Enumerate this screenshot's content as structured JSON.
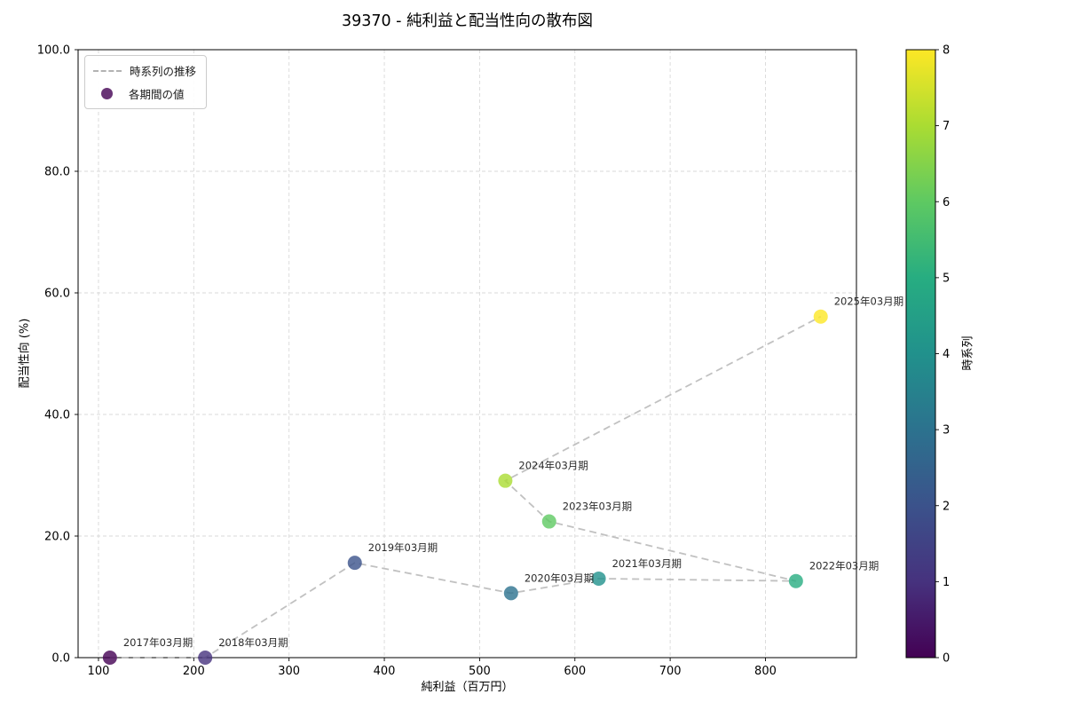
{
  "title": "39370 - 純利益と配当性向の散布図",
  "chart_data": {
    "type": "scatter",
    "title": "39370 - 純利益と配当性向の散布図",
    "xlabel": "純利益（百万円）",
    "ylabel": "配当性向 (%)",
    "xlim": [
      78.6,
      895.5
    ],
    "ylim": [
      0,
      100
    ],
    "x_ticks": [
      100,
      200,
      300,
      400,
      500,
      600,
      700,
      800
    ],
    "y_ticks": [
      0,
      20,
      40,
      60,
      80,
      100
    ],
    "y_tick_labels": [
      "0.0",
      "20.0",
      "40.0",
      "60.0",
      "80.0",
      "100.0"
    ],
    "grid": true,
    "legend": {
      "position": "upper-left",
      "items": [
        {
          "label": "時系列の推移",
          "sample": "dashed-line"
        },
        {
          "label": "各期間の値",
          "sample": "marker"
        }
      ]
    },
    "points": [
      {
        "label": "2017年03月期",
        "x": 112,
        "y": 0.0,
        "t": 0,
        "color": "#440154"
      },
      {
        "label": "2018年03月期",
        "x": 212,
        "y": 0.0,
        "t": 1,
        "color": "#46327e"
      },
      {
        "label": "2019年03月期",
        "x": 369,
        "y": 15.6,
        "t": 2,
        "color": "#3b528b"
      },
      {
        "label": "2020年03月期",
        "x": 533,
        "y": 10.6,
        "t": 3,
        "color": "#2c728e"
      },
      {
        "label": "2021年03月期",
        "x": 625,
        "y": 13.0,
        "t": 4,
        "color": "#21918c"
      },
      {
        "label": "2022年03月期",
        "x": 832,
        "y": 12.6,
        "t": 5,
        "color": "#27ad81"
      },
      {
        "label": "2023年03月期",
        "x": 573,
        "y": 22.4,
        "t": 6,
        "color": "#5ec962"
      },
      {
        "label": "2024年03月期",
        "x": 527,
        "y": 29.1,
        "t": 7,
        "color": "#aadc32"
      },
      {
        "label": "2025年03月期",
        "x": 858,
        "y": 56.1,
        "t": 8,
        "color": "#fde725"
      }
    ],
    "colorbar": {
      "label": "時系列",
      "min": 0,
      "max": 8,
      "ticks": [
        0,
        1,
        2,
        3,
        4,
        5,
        6,
        7,
        8
      ],
      "gradient": [
        "#440154",
        "#46327e",
        "#3b528b",
        "#2c728e",
        "#21918c",
        "#27ad81",
        "#5ec962",
        "#aadc32",
        "#fde725"
      ]
    },
    "styles": {
      "marker_alpha": 0.8,
      "marker_radius": 8,
      "line_color": "#bababa",
      "grid_color": "#d9d9d9",
      "annotation_color": "#2b2b2b",
      "spine_color": "#000000"
    }
  }
}
